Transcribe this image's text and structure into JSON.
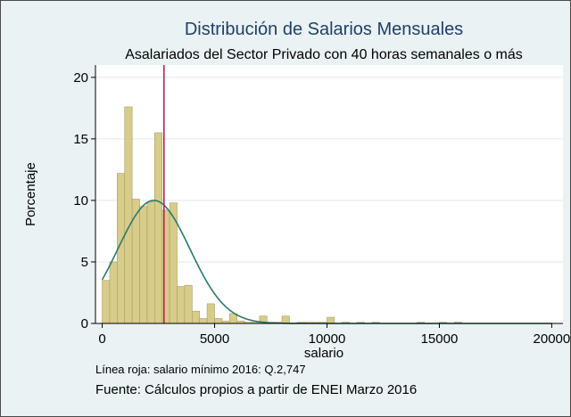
{
  "chart_data": {
    "type": "bar",
    "title": "Distribución de Salarios Mensuales",
    "subtitle": "Asalariados del Sector Privado con 40 horas semanales o más",
    "xlabel": "salario",
    "ylabel": "Porcentaje",
    "xlim": [
      -300,
      20500
    ],
    "ylim": [
      0,
      21
    ],
    "xticks": [
      0,
      5000,
      10000,
      15000,
      20000
    ],
    "yticks": [
      0,
      5,
      10,
      15,
      20
    ],
    "bin_width": 333,
    "bins": [
      {
        "x": 0,
        "value": 3.5
      },
      {
        "x": 333,
        "value": 5.0
      },
      {
        "x": 666,
        "value": 12.2
      },
      {
        "x": 1000,
        "value": 17.6
      },
      {
        "x": 1333,
        "value": 10.1
      },
      {
        "x": 1666,
        "value": 9.5
      },
      {
        "x": 2000,
        "value": 9.9
      },
      {
        "x": 2333,
        "value": 15.5
      },
      {
        "x": 2666,
        "value": 9.2
      },
      {
        "x": 3000,
        "value": 9.8
      },
      {
        "x": 3333,
        "value": 3.0
      },
      {
        "x": 3666,
        "value": 3.1
      },
      {
        "x": 4000,
        "value": 1.0
      },
      {
        "x": 4333,
        "value": 0.4
      },
      {
        "x": 4666,
        "value": 1.6
      },
      {
        "x": 5000,
        "value": 0.4
      },
      {
        "x": 5333,
        "value": 0.2
      },
      {
        "x": 5666,
        "value": 0.8
      },
      {
        "x": 6000,
        "value": 0.2
      },
      {
        "x": 6333,
        "value": 0.1
      },
      {
        "x": 6666,
        "value": 0.1
      },
      {
        "x": 7000,
        "value": 0.6
      },
      {
        "x": 7333,
        "value": 0.1
      },
      {
        "x": 7666,
        "value": 0.1
      },
      {
        "x": 8000,
        "value": 0.6
      },
      {
        "x": 8666,
        "value": 0.1
      },
      {
        "x": 9000,
        "value": 0.1
      },
      {
        "x": 9333,
        "value": 0.1
      },
      {
        "x": 9666,
        "value": 0.1
      },
      {
        "x": 10000,
        "value": 0.5
      },
      {
        "x": 10666,
        "value": 0.1
      },
      {
        "x": 11333,
        "value": 0.1
      },
      {
        "x": 12000,
        "value": 0.1
      },
      {
        "x": 14000,
        "value": 0.1
      },
      {
        "x": 15000,
        "value": 0.1
      },
      {
        "x": 15666,
        "value": 0.1
      }
    ],
    "normal_curve": {
      "mean": 2300,
      "sd": 1600,
      "peak": 10.0,
      "color": "#2a7a6e"
    },
    "reference_line": {
      "x": 2747,
      "color": "#c2185b"
    },
    "bar_fill": "#d8cc8a",
    "bar_stroke": "#a99f62",
    "background": "#eaf2f3",
    "plot_background": "#ffffff",
    "gridlines": true,
    "note": "Línea roja: salario mínimo 2016: Q.2,747",
    "source": "Fuente: Cálculos propios a partir de ENEI Marzo 2016"
  }
}
